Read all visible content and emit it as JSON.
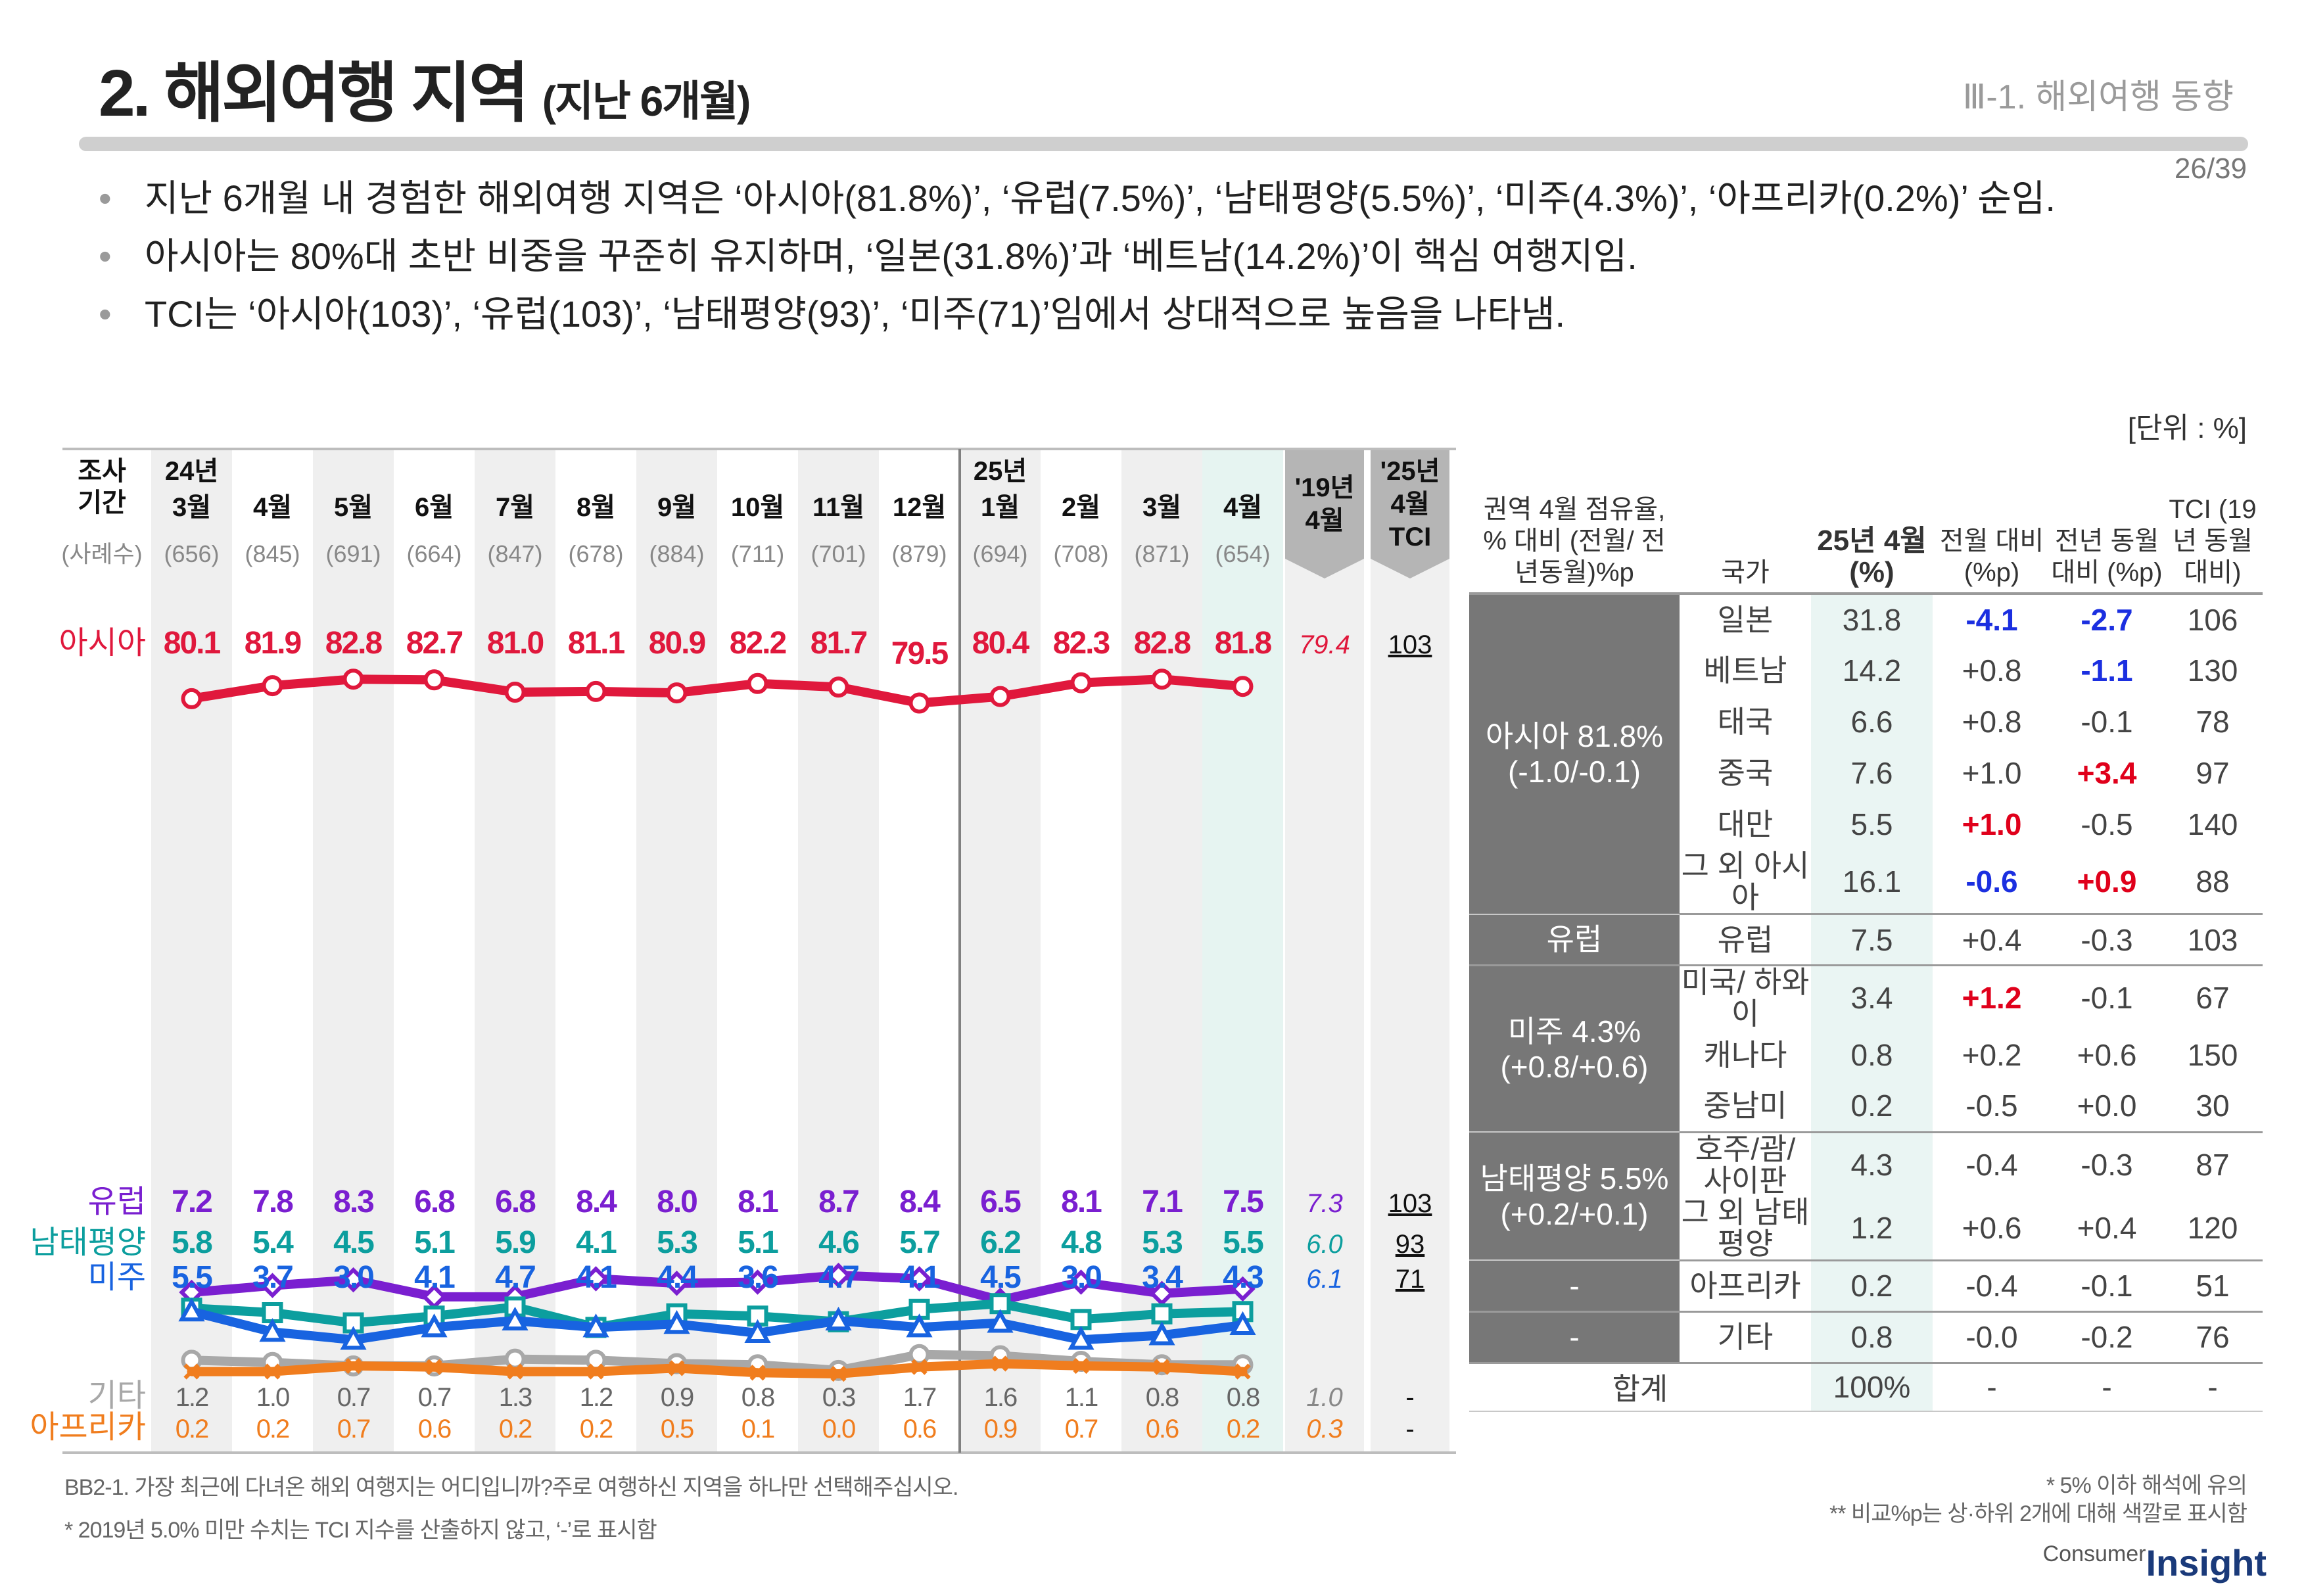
{
  "header": {
    "title": "2. 해외여행 지역",
    "title_sub": "(지난 6개월)",
    "section": "Ⅲ-1. 해외여행 동향",
    "page": "26/39"
  },
  "bullets": [
    "지난 6개월 내 경험한 해외여행 지역은 ‘아시아(81.8%)’, ‘유럽(7.5%)’, ‘남태평양(5.5%)’, ‘미주(4.3%)’, ‘아프리카(0.2%)’ 순임.",
    "아시아는 80%대 초반 비중을 꾸준히 유지하며, ‘일본(31.8%)’과 ‘베트남(14.2%)’이 핵심 여행지임.",
    "TCI는 ‘아시아(103)’, ‘유럽(103)’, ‘남태평양(93)’, ‘미주(71)’임에서 상대적으로 높음을 나타냄."
  ],
  "unit": "[단위 : %]",
  "chart_data": {
    "type": "line",
    "row_header": {
      "period": [
        "조사",
        "기간"
      ],
      "sample": "(사례수)"
    },
    "year_marks": [
      "24년",
      "25년"
    ],
    "categories": [
      "3월",
      "4월",
      "5월",
      "6월",
      "7월",
      "8월",
      "9월",
      "10월",
      "11월",
      "12월",
      "1월",
      "2월",
      "3월",
      "4월"
    ],
    "sample_sizes": [
      "(656)",
      "(845)",
      "(691)",
      "(664)",
      "(847)",
      "(678)",
      "(884)",
      "(711)",
      "(701)",
      "(879)",
      "(694)",
      "(708)",
      "(871)",
      "(654)"
    ],
    "comparison_headers": {
      "y2019": [
        "'19년",
        "4월"
      ],
      "tci": [
        "'25년",
        "4월",
        "TCI"
      ]
    },
    "series": [
      {
        "name": "아시아",
        "color": "#e0183c",
        "marker": "circle",
        "values": [
          80.1,
          81.9,
          82.8,
          82.7,
          81.0,
          81.1,
          80.9,
          82.2,
          81.7,
          79.5,
          80.4,
          82.3,
          82.8,
          81.8
        ],
        "labels": [
          "80.1",
          "81.9",
          "82.8",
          "82.7",
          "81.0",
          "81.1",
          "80.9",
          "82.2",
          "81.7",
          "79.5",
          "80.4",
          "82.3",
          "82.8",
          "81.8"
        ],
        "y2019": "79.4",
        "tci": "103"
      },
      {
        "name": "유럽",
        "color": "#7a1fd0",
        "marker": "diamond",
        "values": [
          7.2,
          7.8,
          8.3,
          6.8,
          6.8,
          8.4,
          8.0,
          8.1,
          8.7,
          8.4,
          6.5,
          8.1,
          7.1,
          7.5
        ],
        "labels": [
          "7.2",
          "7.8",
          "8.3",
          "6.8",
          "6.8",
          "8.4",
          "8.0",
          "8.1",
          "8.7",
          "8.4",
          "6.5",
          "8.1",
          "7.1",
          "7.5"
        ],
        "y2019": "7.3",
        "tci": "103"
      },
      {
        "name": "남태평양",
        "color": "#0c9e9e",
        "marker": "square",
        "values": [
          5.8,
          5.4,
          4.5,
          5.1,
          5.9,
          4.1,
          5.3,
          5.1,
          4.6,
          5.7,
          6.2,
          4.8,
          5.3,
          5.5
        ],
        "labels": [
          "5.8",
          "5.4",
          "4.5",
          "5.1",
          "5.9",
          "4.1",
          "5.3",
          "5.1",
          "4.6",
          "5.7",
          "6.2",
          "4.8",
          "5.3",
          "5.5"
        ],
        "y2019": "6.0",
        "tci": "93"
      },
      {
        "name": "미주",
        "color": "#1863e0",
        "marker": "triangle",
        "values": [
          5.5,
          3.7,
          3.0,
          4.1,
          4.7,
          4.1,
          4.4,
          3.6,
          4.7,
          4.1,
          4.5,
          3.0,
          3.4,
          4.3
        ],
        "labels": [
          "5.5",
          "3.7",
          "3.0",
          "4.1",
          "4.7",
          "4.1",
          "4.4",
          "3.6",
          "4.7",
          "4.1",
          "4.5",
          "3.0",
          "3.4",
          "4.3"
        ],
        "y2019": "6.1",
        "tci": "71"
      },
      {
        "name": "기타",
        "color": "#a8a8a8",
        "marker": "circle",
        "values": [
          1.2,
          1.0,
          0.7,
          0.7,
          1.3,
          1.2,
          0.9,
          0.8,
          0.3,
          1.7,
          1.6,
          1.1,
          0.8,
          0.8
        ],
        "labels": [
          "1.2",
          "1.0",
          "0.7",
          "0.7",
          "1.3",
          "1.2",
          "0.9",
          "0.8",
          "0.3",
          "1.7",
          "1.6",
          "1.1",
          "0.8",
          "0.8"
        ],
        "y2019": "1.0",
        "tci": "-"
      },
      {
        "name": "아프리카",
        "color": "#f07d1e",
        "marker": "x",
        "values": [
          0.2,
          0.2,
          0.7,
          0.6,
          0.2,
          0.2,
          0.5,
          0.1,
          0.0,
          0.6,
          0.9,
          0.7,
          0.6,
          0.2
        ],
        "labels": [
          "0.2",
          "0.2",
          "0.7",
          "0.6",
          "0.2",
          "0.2",
          "0.5",
          "0.1",
          "0.0",
          "0.6",
          "0.9",
          "0.7",
          "0.6",
          "0.2"
        ],
        "y2019": "0.3",
        "tci": "-"
      }
    ]
  },
  "table": {
    "headers": {
      "region": "권역 4월 점유율, % 대비 (전월/ 전년동월)%p",
      "country": "국가",
      "share": "25년 4월 (%)",
      "mom": "전월 대비 (%p)",
      "yoy": "전년 동월 대비 (%p)",
      "tci": "TCI (19년 동월 대비)"
    },
    "regions": [
      {
        "label": "아시아 81.8% (-1.0/-0.1)",
        "rows": [
          {
            "country": "일본",
            "share": "31.8",
            "mom": "-4.1",
            "yoy": "-2.7",
            "tci": "106",
            "mom_hl": "neg",
            "yoy_hl": "neg"
          },
          {
            "country": "베트남",
            "share": "14.2",
            "mom": "+0.8",
            "yoy": "-1.1",
            "tci": "130",
            "mom_hl": "",
            "yoy_hl": "neg"
          },
          {
            "country": "태국",
            "share": "6.6",
            "mom": "+0.8",
            "yoy": "-0.1",
            "tci": "78",
            "mom_hl": "",
            "yoy_hl": ""
          },
          {
            "country": "중국",
            "share": "7.6",
            "mom": "+1.0",
            "yoy": "+3.4",
            "tci": "97",
            "mom_hl": "",
            "yoy_hl": "pos"
          },
          {
            "country": "대만",
            "share": "5.5",
            "mom": "+1.0",
            "yoy": "-0.5",
            "tci": "140",
            "mom_hl": "pos",
            "yoy_hl": ""
          },
          {
            "country": "그 외 아시아",
            "share": "16.1",
            "mom": "-0.6",
            "yoy": "+0.9",
            "tci": "88",
            "mom_hl": "neg",
            "yoy_hl": "pos"
          }
        ]
      },
      {
        "label": "유럽",
        "rows": [
          {
            "country": "유럽",
            "share": "7.5",
            "mom": "+0.4",
            "yoy": "-0.3",
            "tci": "103",
            "mom_hl": "",
            "yoy_hl": ""
          }
        ]
      },
      {
        "label": "미주 4.3% (+0.8/+0.6)",
        "rows": [
          {
            "country": "미국/ 하와이",
            "share": "3.4",
            "mom": "+1.2",
            "yoy": "-0.1",
            "tci": "67",
            "mom_hl": "pos",
            "yoy_hl": ""
          },
          {
            "country": "캐나다",
            "share": "0.8",
            "mom": "+0.2",
            "yoy": "+0.6",
            "tci": "150",
            "mom_hl": "",
            "yoy_hl": ""
          },
          {
            "country": "중남미",
            "share": "0.2",
            "mom": "-0.5",
            "yoy": "+0.0",
            "tci": "30",
            "mom_hl": "",
            "yoy_hl": ""
          }
        ]
      },
      {
        "label": "남태평양 5.5% (+0.2/+0.1)",
        "rows": [
          {
            "country": "호주/괌/ 사이판",
            "share": "4.3",
            "mom": "-0.4",
            "yoy": "-0.3",
            "tci": "87",
            "mom_hl": "",
            "yoy_hl": ""
          },
          {
            "country": "그 외 남태평양",
            "share": "1.2",
            "mom": "+0.6",
            "yoy": "+0.4",
            "tci": "120",
            "mom_hl": "",
            "yoy_hl": ""
          }
        ]
      },
      {
        "label": "-",
        "rows": [
          {
            "country": "아프리카",
            "share": "0.2",
            "mom": "-0.4",
            "yoy": "-0.1",
            "tci": "51",
            "mom_hl": "",
            "yoy_hl": ""
          }
        ]
      },
      {
        "label": "-",
        "rows": [
          {
            "country": "기타",
            "share": "0.8",
            "mom": "-0.0",
            "yoy": "-0.2",
            "tci": "76",
            "mom_hl": "",
            "yoy_hl": ""
          }
        ]
      }
    ],
    "total": {
      "label": "합계",
      "share": "100%",
      "mom": "-",
      "yoy": "-",
      "tci": "-"
    }
  },
  "footnotes": {
    "question": "BB2-1. 가장 최근에 다녀온 해외 여행지는 어디입니까?주로 여행하신 지역을 하나만 선택해주십시오.",
    "note2019": "* 2019년 5.0% 미만 수치는 TCI 지수를 산출하지 않고, ‘-’로 표시함",
    "note5pct": "* 5% 이하 해석에 유의",
    "note_color": "** 비교%p는 상·하위 2개에 대해 색깔로 표시함"
  },
  "logo": {
    "part1": "Consumer",
    "part2": "Insight"
  }
}
